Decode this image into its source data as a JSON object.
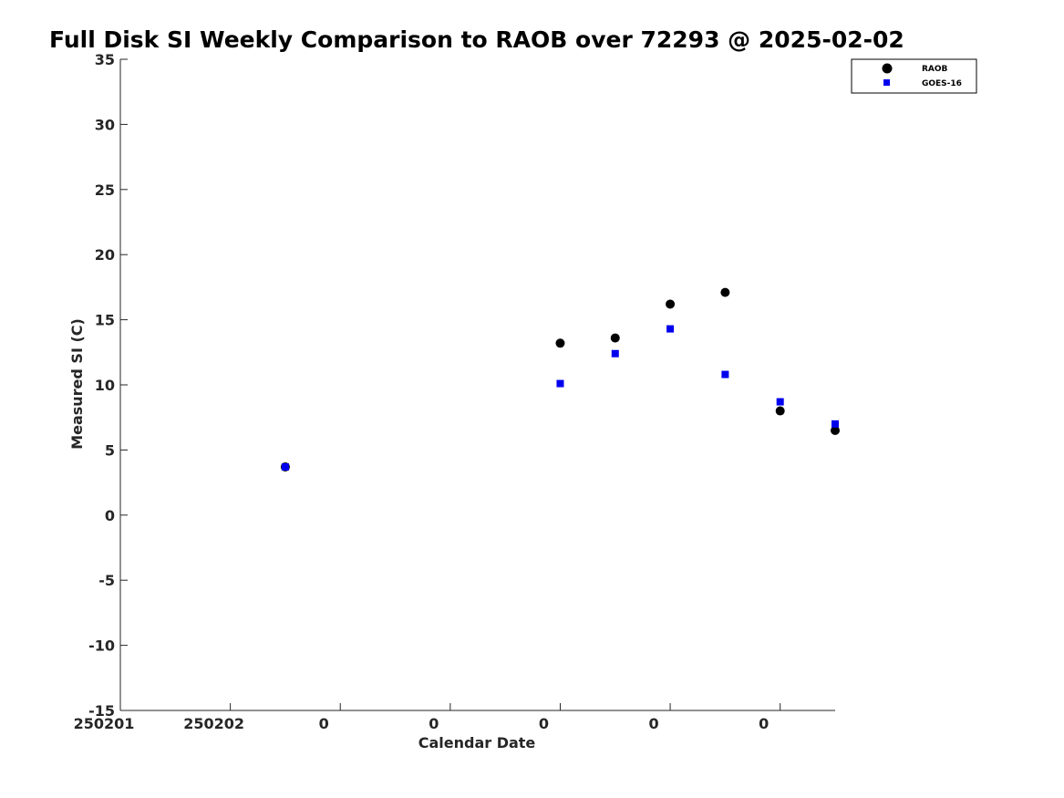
{
  "chart_data": {
    "type": "scatter",
    "title": "Full Disk SI Weekly Comparison to RAOB over 72293 @ 2025-02-02",
    "xlabel": "Calendar Date",
    "ylabel": "Measured SI (C)",
    "ylim": [
      -15,
      35
    ],
    "yticks": [
      -15,
      -10,
      -5,
      0,
      5,
      10,
      15,
      20,
      25,
      30,
      35
    ],
    "xlim": [
      0,
      6.5
    ],
    "xticks": [
      0,
      1,
      2,
      3,
      4,
      5,
      6
    ],
    "xtick_labels": [
      "250201",
      "250202",
      "0",
      "0",
      "0",
      "0",
      "0"
    ],
    "grid": false,
    "legend_position": "top-right",
    "series": [
      {
        "name": "RAOB",
        "marker": "circle",
        "color": "#000000",
        "points": [
          {
            "x": 1.5,
            "y": 3.7
          },
          {
            "x": 4.0,
            "y": 13.2
          },
          {
            "x": 4.5,
            "y": 13.6
          },
          {
            "x": 5.0,
            "y": 16.2
          },
          {
            "x": 5.5,
            "y": 17.1
          },
          {
            "x": 6.0,
            "y": 8.0
          },
          {
            "x": 6.5,
            "y": 6.5
          }
        ]
      },
      {
        "name": "GOES-16",
        "marker": "square",
        "color": "#0000ee",
        "points": [
          {
            "x": 1.5,
            "y": 3.7
          },
          {
            "x": 4.0,
            "y": 10.1
          },
          {
            "x": 4.5,
            "y": 12.4
          },
          {
            "x": 5.0,
            "y": 14.3
          },
          {
            "x": 5.5,
            "y": 10.8
          },
          {
            "x": 6.0,
            "y": 8.7
          },
          {
            "x": 6.5,
            "y": 7.0
          }
        ]
      }
    ]
  }
}
